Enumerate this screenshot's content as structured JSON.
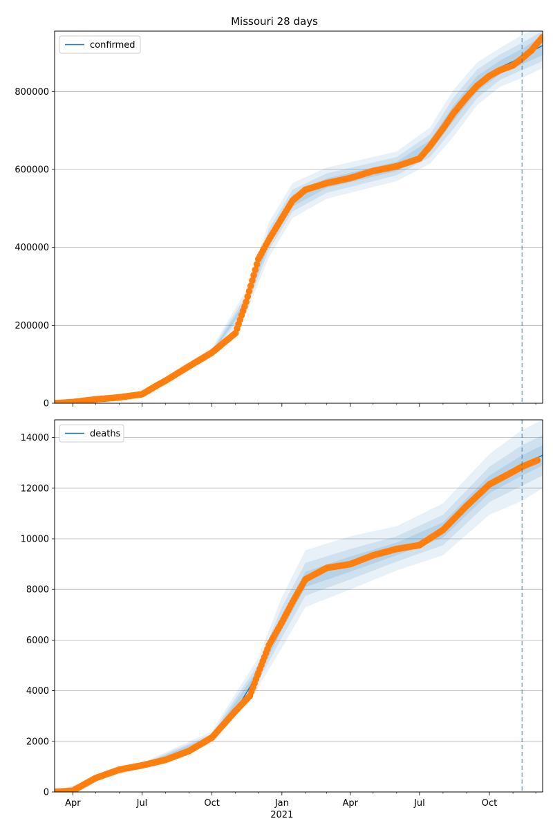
{
  "figure_title": "Missouri 28 days",
  "colors": {
    "model_line": "#1f77b4",
    "band": "#1f77b4",
    "observed": "#ff7f0e",
    "grid": "#b0b0b0",
    "forecast_line": "#1f77b4"
  },
  "chart_data": [
    {
      "type": "line",
      "title": "Missouri 28 days",
      "legend": [
        "confirmed"
      ],
      "legend_position": "upper-left",
      "grid": "horizontal",
      "x_type": "date",
      "xlim": [
        "2020-03-08",
        "2021-12-10"
      ],
      "ylim": [
        0,
        955000
      ],
      "yticks": [
        0,
        200000,
        400000,
        600000,
        800000
      ],
      "ytick_labels": [
        "0",
        "200000",
        "400000",
        "600000",
        "800000"
      ],
      "xticks": [
        "2020-04-01",
        "2020-07-01",
        "2020-10-01",
        "2021-01-01",
        "2021-04-01",
        "2021-07-01",
        "2021-10-01"
      ],
      "xtick_labels": [],
      "forecast_start": "2021-11-13",
      "series": [
        {
          "name": "confirmed",
          "kind": "model",
          "x": [
            "2020-03-08",
            "2020-04-01",
            "2020-05-01",
            "2020-06-01",
            "2020-07-01",
            "2020-08-01",
            "2020-09-01",
            "2020-10-01",
            "2020-11-01",
            "2020-11-15",
            "2020-12-01",
            "2020-12-15",
            "2021-01-01",
            "2021-01-15",
            "2021-02-01",
            "2021-03-01",
            "2021-04-01",
            "2021-05-01",
            "2021-06-01",
            "2021-07-01",
            "2021-07-15",
            "2021-08-01",
            "2021-08-15",
            "2021-09-01",
            "2021-09-15",
            "2021-10-01",
            "2021-10-15",
            "2021-11-01",
            "2021-11-13",
            "2021-12-10"
          ],
          "y": [
            0,
            2000,
            9000,
            15000,
            23000,
            58000,
            95000,
            130000,
            180000,
            260000,
            370000,
            420000,
            475000,
            520000,
            548000,
            565000,
            578000,
            596000,
            608000,
            628000,
            660000,
            705000,
            745000,
            785000,
            820000,
            845000,
            862000,
            877000,
            890000,
            918000
          ]
        },
        {
          "name": "confirmed",
          "kind": "observed",
          "x": [
            "2020-03-08",
            "2020-04-01",
            "2020-05-01",
            "2020-06-01",
            "2020-07-01",
            "2020-07-20",
            "2020-08-01",
            "2020-09-01",
            "2020-10-01",
            "2020-11-01",
            "2020-11-15",
            "2020-12-01",
            "2020-12-15",
            "2021-01-01",
            "2021-01-15",
            "2021-02-01",
            "2021-03-01",
            "2021-04-01",
            "2021-05-01",
            "2021-06-01",
            "2021-07-01",
            "2021-07-15",
            "2021-08-01",
            "2021-08-15",
            "2021-09-01",
            "2021-09-15",
            "2021-10-01",
            "2021-10-15",
            "2021-11-01",
            "2021-11-13",
            "2021-11-25",
            "2021-12-10"
          ],
          "y": [
            0,
            3000,
            10000,
            15000,
            23000,
            45000,
            58000,
            95000,
            130000,
            180000,
            260000,
            370000,
            420000,
            475000,
            520000,
            548000,
            565000,
            578000,
            596000,
            608000,
            628000,
            660000,
            705000,
            745000,
            785000,
            815000,
            840000,
            855000,
            867000,
            885000,
            905000,
            940000
          ]
        }
      ],
      "bands": [
        {
          "level": "inner",
          "x": [
            "2020-03-08",
            "2020-07-01",
            "2020-10-01",
            "2020-11-15",
            "2020-12-15",
            "2021-01-15",
            "2021-03-01",
            "2021-06-01",
            "2021-07-15",
            "2021-08-15",
            "2021-09-15",
            "2021-10-15",
            "2021-11-13",
            "2021-12-10"
          ],
          "lower": [
            0,
            22000,
            127000,
            253000,
            407000,
            505000,
            553000,
            596000,
            645000,
            725000,
            800000,
            845000,
            870000,
            893000
          ],
          "upper": [
            0,
            24000,
            133000,
            267000,
            433000,
            535000,
            577000,
            620000,
            675000,
            765000,
            840000,
            879000,
            910000,
            943000
          ]
        },
        {
          "level": "middle",
          "x": [
            "2020-03-08",
            "2020-07-01",
            "2020-10-01",
            "2020-11-15",
            "2020-12-15",
            "2021-01-15",
            "2021-03-01",
            "2021-06-01",
            "2021-07-15",
            "2021-08-15",
            "2021-09-15",
            "2021-10-15",
            "2021-11-13",
            "2021-12-10"
          ],
          "lower": [
            0,
            21000,
            123000,
            243000,
            393000,
            492000,
            540000,
            585000,
            632000,
            705000,
            783000,
            830000,
            855000,
            878000
          ],
          "upper": [
            0,
            25000,
            137000,
            277000,
            447000,
            548000,
            590000,
            632000,
            690000,
            785000,
            857000,
            895000,
            925000,
            955000
          ]
        },
        {
          "level": "outer",
          "x": [
            "2020-03-08",
            "2020-07-01",
            "2020-10-01",
            "2020-11-15",
            "2020-12-15",
            "2021-01-15",
            "2021-03-01",
            "2021-06-01",
            "2021-07-15",
            "2021-08-15",
            "2021-09-15",
            "2021-10-15",
            "2021-11-13",
            "2021-12-10"
          ],
          "lower": [
            0,
            20000,
            118000,
            230000,
            375000,
            475000,
            525000,
            570000,
            615000,
            685000,
            765000,
            812000,
            835000,
            860000
          ],
          "upper": [
            0,
            26000,
            142000,
            290000,
            465000,
            565000,
            605000,
            646000,
            708000,
            805000,
            875000,
            912000,
            945000,
            970000
          ]
        }
      ]
    },
    {
      "type": "line",
      "legend": [
        "deaths"
      ],
      "legend_position": "upper-left",
      "grid": "horizontal",
      "x_type": "date",
      "xlim": [
        "2020-03-08",
        "2021-12-10"
      ],
      "ylim": [
        0,
        14700
      ],
      "yticks": [
        0,
        2000,
        4000,
        6000,
        8000,
        10000,
        12000,
        14000
      ],
      "ytick_labels": [
        "0",
        "2000",
        "4000",
        "6000",
        "8000",
        "10000",
        "12000",
        "14000"
      ],
      "xticks": [
        "2020-04-01",
        "2020-07-01",
        "2020-10-01",
        "2021-01-01",
        "2021-04-01",
        "2021-07-01",
        "2021-10-01"
      ],
      "xtick_labels": [
        "Apr",
        "Jul",
        "Oct",
        "Jan",
        "Apr",
        "Jul",
        "Oct"
      ],
      "year_label": {
        "text": "2021",
        "at": "2021-01-01"
      },
      "forecast_start": "2021-11-13",
      "series": [
        {
          "name": "deaths",
          "kind": "model",
          "x": [
            "2020-03-08",
            "2020-04-01",
            "2020-05-01",
            "2020-06-01",
            "2020-07-01",
            "2020-08-01",
            "2020-09-01",
            "2020-10-01",
            "2020-11-01",
            "2020-12-01",
            "2020-12-15",
            "2021-01-01",
            "2021-01-15",
            "2021-02-01",
            "2021-03-01",
            "2021-04-01",
            "2021-05-01",
            "2021-06-01",
            "2021-07-01",
            "2021-08-01",
            "2021-09-01",
            "2021-10-01",
            "2021-11-01",
            "2021-11-13",
            "2021-12-10"
          ],
          "y": [
            0,
            50,
            550,
            880,
            1050,
            1270,
            1620,
            2150,
            3200,
            4700,
            5800,
            6700,
            7600,
            8400,
            8850,
            9000,
            9350,
            9600,
            9750,
            10350,
            11300,
            12150,
            12700,
            12900,
            13300
          ]
        },
        {
          "name": "deaths",
          "kind": "observed",
          "x": [
            "2020-03-08",
            "2020-04-01",
            "2020-05-01",
            "2020-06-01",
            "2020-07-01",
            "2020-08-01",
            "2020-09-01",
            "2020-10-01",
            "2020-11-01",
            "2020-11-20",
            "2020-12-01",
            "2020-12-15",
            "2021-01-01",
            "2021-01-15",
            "2021-02-01",
            "2021-03-01",
            "2021-04-01",
            "2021-05-01",
            "2021-06-01",
            "2021-07-01",
            "2021-08-01",
            "2021-09-01",
            "2021-10-01",
            "2021-11-01",
            "2021-11-13",
            "2021-11-25",
            "2021-12-03"
          ],
          "y": [
            0,
            50,
            550,
            880,
            1050,
            1270,
            1620,
            2150,
            3200,
            3800,
            4700,
            5800,
            6700,
            7500,
            8400,
            8850,
            9000,
            9350,
            9600,
            9750,
            10350,
            11300,
            12150,
            12650,
            12850,
            13000,
            13100
          ]
        }
      ],
      "bands": [
        {
          "level": "inner",
          "x": [
            "2020-03-08",
            "2020-07-01",
            "2020-10-01",
            "2020-12-01",
            "2021-01-01",
            "2021-02-01",
            "2021-04-01",
            "2021-06-01",
            "2021-08-01",
            "2021-10-01",
            "2021-11-13",
            "2021-12-10"
          ],
          "lower": [
            0,
            1020,
            2080,
            4550,
            6400,
            8100,
            8700,
            9350,
            10050,
            11800,
            12500,
            12900
          ],
          "upper": [
            0,
            1080,
            2220,
            4850,
            7000,
            8700,
            9300,
            9850,
            10650,
            12500,
            13300,
            13700
          ]
        },
        {
          "level": "middle",
          "x": [
            "2020-03-08",
            "2020-07-01",
            "2020-10-01",
            "2020-12-01",
            "2021-01-01",
            "2021-02-01",
            "2021-04-01",
            "2021-06-01",
            "2021-08-01",
            "2021-10-01",
            "2021-11-13",
            "2021-12-10"
          ],
          "lower": [
            0,
            990,
            2000,
            4380,
            6100,
            7750,
            8400,
            9100,
            9750,
            11450,
            12100,
            12500
          ],
          "upper": [
            0,
            1110,
            2300,
            5050,
            7300,
            9050,
            9600,
            10100,
            10950,
            12850,
            13700,
            14100
          ]
        },
        {
          "level": "outer",
          "x": [
            "2020-03-08",
            "2020-07-01",
            "2020-10-01",
            "2020-12-01",
            "2021-01-01",
            "2021-02-01",
            "2021-04-01",
            "2021-06-01",
            "2021-08-01",
            "2021-10-01",
            "2021-11-13",
            "2021-12-10"
          ],
          "lower": [
            0,
            950,
            1900,
            4150,
            5700,
            7300,
            8000,
            8750,
            9350,
            10950,
            11500,
            12000
          ],
          "upper": [
            0,
            1150,
            2400,
            5300,
            7700,
            9550,
            10100,
            10500,
            11400,
            13350,
            14300,
            14700
          ]
        }
      ]
    }
  ]
}
